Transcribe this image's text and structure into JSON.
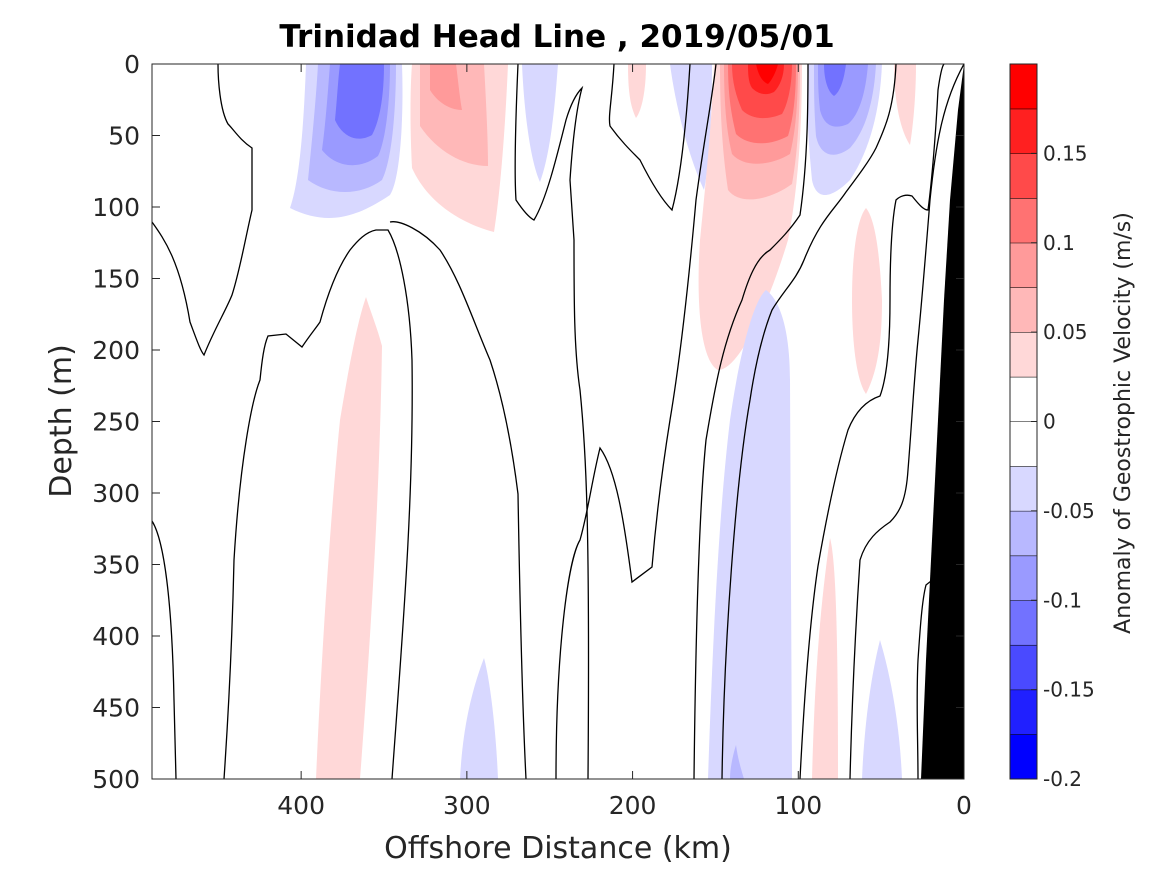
{
  "chart_data": {
    "type": "heatmap",
    "title": "Trinidad Head Line , 2019/05/01",
    "xlabel": "Offshore Distance (km)",
    "ylabel": "Depth (m)",
    "xlim": [
      490,
      0
    ],
    "ylim": [
      0,
      500
    ],
    "x_reversed": true,
    "y_reversed": true,
    "x_ticks": [
      400,
      300,
      200,
      100,
      0
    ],
    "x_tick_labels": [
      "400",
      "300",
      "200",
      "100",
      "0"
    ],
    "y_ticks": [
      0,
      50,
      100,
      150,
      200,
      250,
      300,
      350,
      400,
      450,
      500
    ],
    "y_tick_labels": [
      "0",
      "50",
      "100",
      "150",
      "200",
      "250",
      "300",
      "350",
      "400",
      "450",
      "500"
    ],
    "colorbar": {
      "label": "Anomaly of Geostrophic Velocity (m/s)",
      "range": [
        -0.2,
        0.2
      ],
      "step": 0.025,
      "tick_values": [
        -0.2,
        -0.15,
        -0.1,
        -0.05,
        0,
        0.05,
        0.1,
        0.15
      ],
      "tick_labels": [
        "-0.2",
        "-0.15",
        "-0.1",
        "-0.05",
        "0",
        "0.05",
        "0.1",
        "0.15"
      ],
      "colors": [
        "#0000ff",
        "#2020ff",
        "#4a4aff",
        "#7272ff",
        "#9a9aff",
        "#b8b8ff",
        "#d8d8ff",
        "#ffffff",
        "#ffffff",
        "#ffd8d8",
        "#ffb8b8",
        "#ff9a9a",
        "#ff7272",
        "#ff4a4a",
        "#ff2020",
        "#ff0000"
      ]
    },
    "features": [
      {
        "name": "anticyclonic-core",
        "x_center": 120,
        "depth_center": 0,
        "peak_value": 0.2
      },
      {
        "name": "cyclonic-eddy",
        "x_center": 370,
        "depth_center": 40,
        "peak_value": -0.1
      },
      {
        "name": "cyclonic-core-nearshore",
        "x_center": 80,
        "depth_center": 20,
        "peak_value": -0.1
      },
      {
        "name": "warm-eddy",
        "x_center": 310,
        "depth_center": 30,
        "peak_value": 0.075
      },
      {
        "name": "deep-southward-flow",
        "x_center": 120,
        "depth_center": 350,
        "peak_value": -0.05
      }
    ],
    "bathymetry": {
      "color": "#000000",
      "shelf_break_x": 30
    }
  }
}
